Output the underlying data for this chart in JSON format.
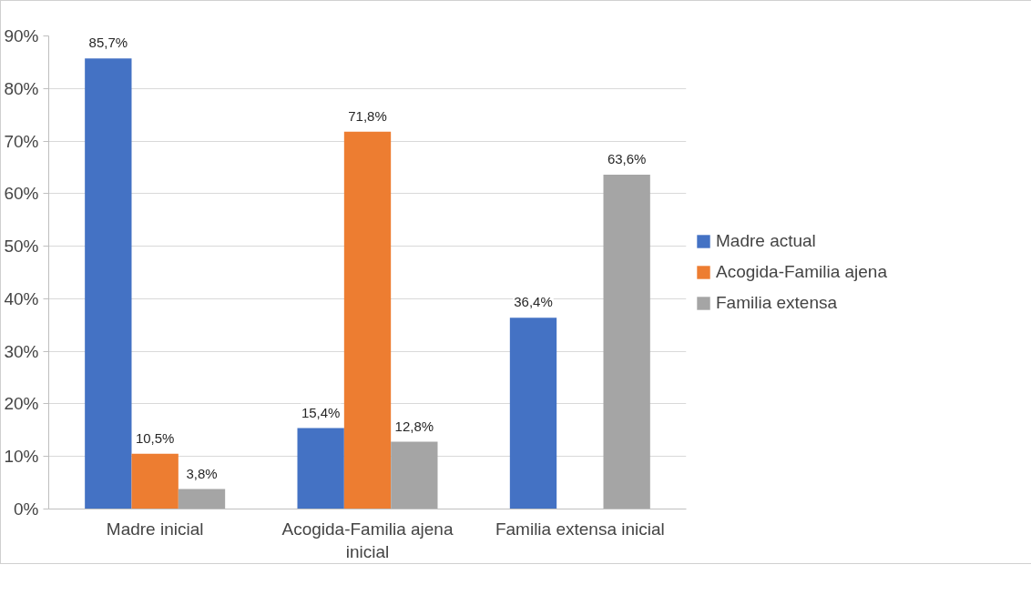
{
  "chart_data": {
    "type": "bar",
    "categories": [
      "Madre inicial",
      "Acogida-Familia ajena inicial",
      "Familia extensa inicial"
    ],
    "series": [
      {
        "name": "Madre actual",
        "color": "#4472c4",
        "values": [
          85.7,
          15.4,
          36.4
        ],
        "value_labels": [
          "85,7%",
          "15,4%",
          "36,4%"
        ]
      },
      {
        "name": "Acogida-Familia ajena",
        "color": "#ed7d31",
        "values": [
          10.5,
          71.8,
          null
        ],
        "value_labels": [
          "10,5%",
          "71,8%",
          null
        ]
      },
      {
        "name": "Familia extensa",
        "color": "#a5a5a5",
        "values": [
          3.8,
          12.8,
          63.6
        ],
        "value_labels": [
          "3,8%",
          "12,8%",
          "63,6%"
        ]
      }
    ],
    "ylim": [
      0,
      90
    ],
    "yticks": [
      {
        "value": 0,
        "label": "0%"
      },
      {
        "value": 10,
        "label": "10%"
      },
      {
        "value": 20,
        "label": "20%"
      },
      {
        "value": 30,
        "label": "30%"
      },
      {
        "value": 40,
        "label": "40%"
      },
      {
        "value": 50,
        "label": "50%"
      },
      {
        "value": 60,
        "label": "60%"
      },
      {
        "value": 70,
        "label": "70%"
      },
      {
        "value": 80,
        "label": "80%"
      },
      {
        "value": 90,
        "label": "90%"
      }
    ],
    "grid": "y",
    "legend": "right"
  }
}
